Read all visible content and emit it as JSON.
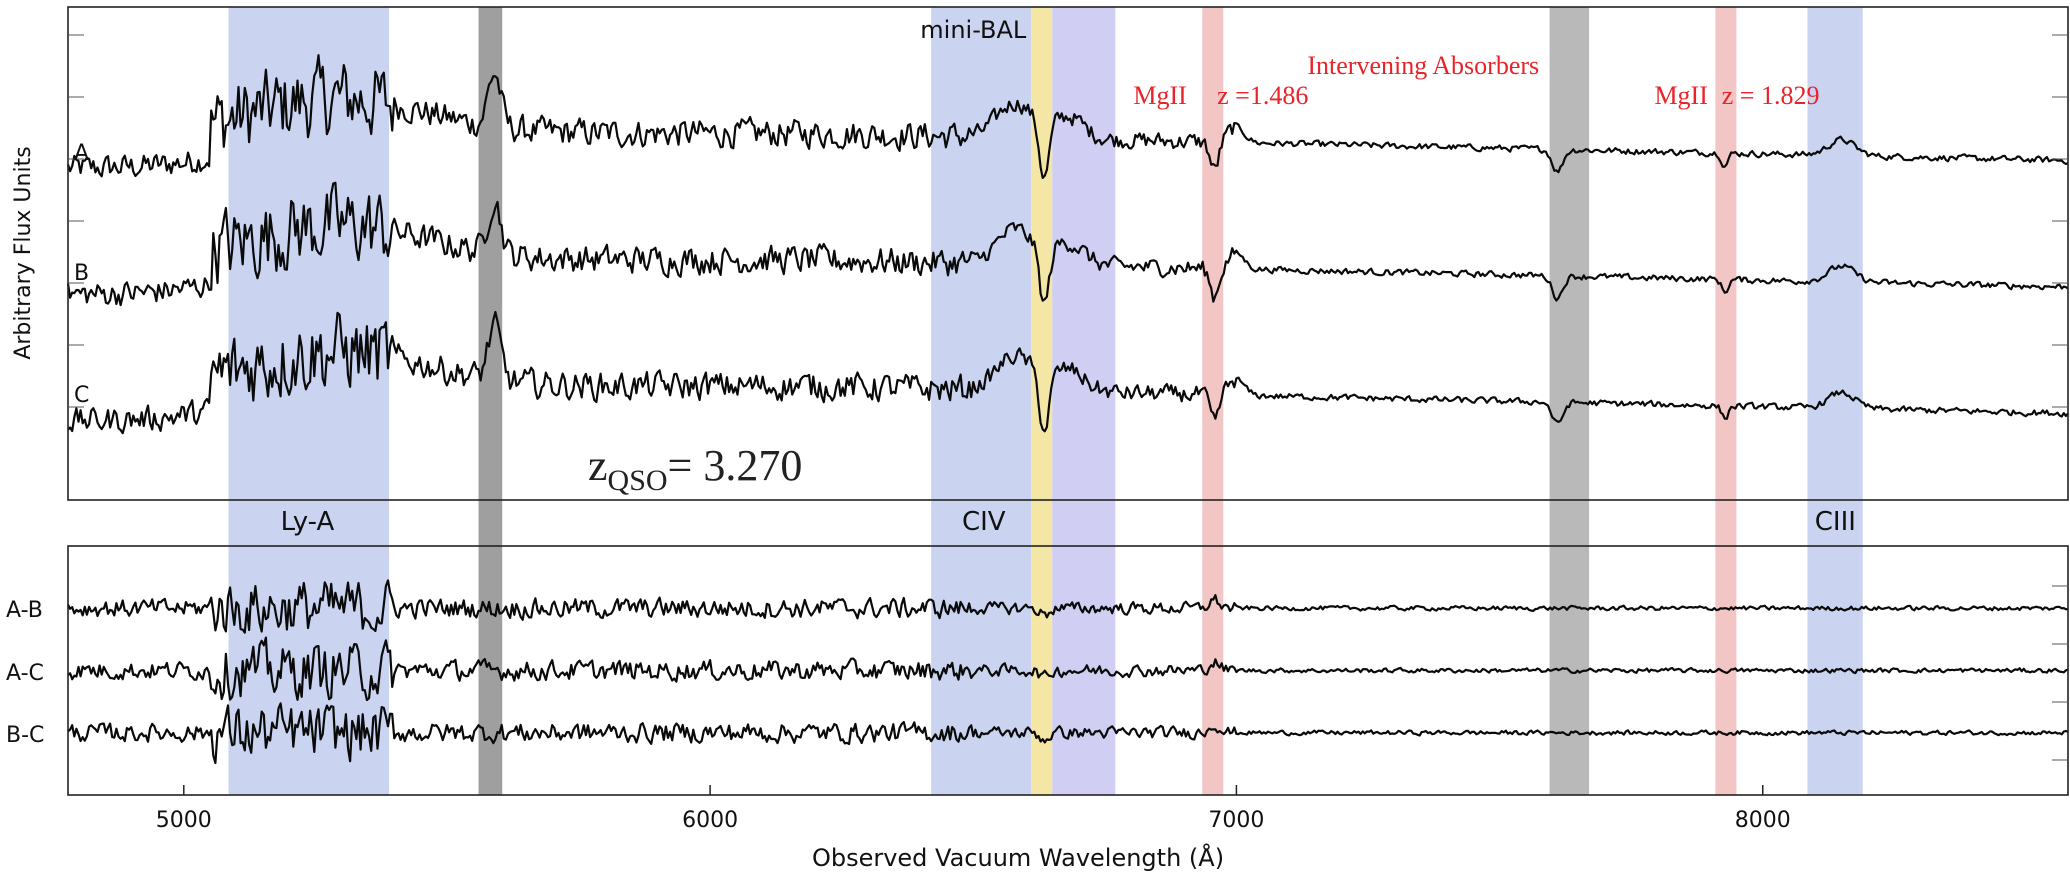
{
  "chart_data": {
    "type": "line",
    "xlabel": "Observed Vacuum Wavelength (Å)",
    "ylabel": "Arbitrary Flux Units",
    "xlim": [
      4780,
      8580
    ],
    "xticks": [
      5000,
      6000,
      7000,
      8000
    ],
    "grid": false,
    "redshift_label": {
      "prefix": "z",
      "subscript": "QSO",
      "value": "= 3.270"
    },
    "top_panel": {
      "series": [
        {
          "name": "A",
          "offset": 2.0
        },
        {
          "name": "B",
          "offset": 1.0
        },
        {
          "name": "C",
          "offset": 0.0
        }
      ]
    },
    "bottom_panel": {
      "series": [
        {
          "name": "A-B",
          "offset": 2.0
        },
        {
          "name": "A-C",
          "offset": 1.0
        },
        {
          "name": "B-C",
          "offset": 0.0
        }
      ]
    },
    "bands": [
      {
        "x0": 5085,
        "x1": 5390,
        "color": "#c7d2f0",
        "label": "Ly-A",
        "label_color": "#3a6cf5",
        "label_x": 5235
      },
      {
        "x0": 5560,
        "x1": 5605,
        "color": "#9a9a9a",
        "label": "",
        "label_color": "",
        "label_x": 0
      },
      {
        "x0": 6420,
        "x1": 6610,
        "color": "#c7d2f0",
        "label": "CIV",
        "label_color": "#3a6cf5",
        "label_x": 6520
      },
      {
        "x0": 6610,
        "x1": 6650,
        "color": "#f3e6a0",
        "label": "mini-BAL",
        "label_color": "#e8c200",
        "label_x": 6500
      },
      {
        "x0": 6650,
        "x1": 6770,
        "color": "#cdccf2",
        "label": "",
        "label_color": "",
        "label_x": 0
      },
      {
        "x0": 6935,
        "x1": 6975,
        "color": "#f2c3c3",
        "label": "",
        "label_color": "",
        "label_x": 0
      },
      {
        "x0": 7595,
        "x1": 7670,
        "color": "#b5b5b5",
        "label": "",
        "label_color": "",
        "label_x": 0
      },
      {
        "x0": 7910,
        "x1": 7950,
        "color": "#f2c3c3",
        "label": "",
        "label_color": "",
        "label_x": 0
      },
      {
        "x0": 8085,
        "x1": 8190,
        "color": "#c7d2f0",
        "label": "CIII",
        "label_color": "#3a6cf5",
        "label_x": 8138
      }
    ],
    "annotations": [
      {
        "text": "MgII",
        "x": 6855,
        "color": "#e8242a"
      },
      {
        "text": "z =1.486",
        "x": 7050,
        "color": "#e8242a"
      },
      {
        "text": "Intervening Absorbers",
        "x": 7355,
        "color": "#e8242a"
      },
      {
        "text": "MgII",
        "x": 7845,
        "color": "#e8242a"
      },
      {
        "text": "z = 1.829",
        "x": 8015,
        "color": "#e8242a"
      }
    ]
  }
}
